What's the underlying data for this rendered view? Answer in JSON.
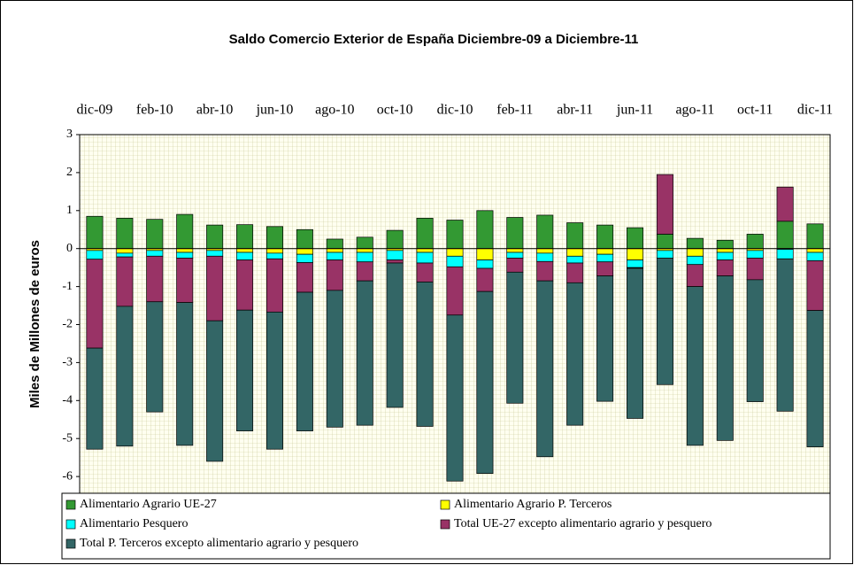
{
  "chart_data": {
    "type": "stacked_bar",
    "title": "Saldo Comercio Exterior de España Diciembre-09 a Diciembre-11",
    "y_label": "Miles de Millones de euros",
    "categories": [
      "dic-09",
      null,
      "feb-10",
      null,
      "abr-10",
      null,
      "jun-10",
      null,
      "ago-10",
      null,
      "oct-10",
      null,
      "dic-10",
      null,
      "feb-11",
      null,
      "abr-11",
      null,
      "jun-11",
      null,
      "ago-11",
      null,
      "oct-11",
      null,
      "dic-11"
    ],
    "ylim": [
      -7,
      3
    ],
    "yticks": [
      3,
      2,
      1,
      0,
      -1,
      -2,
      -3,
      -4,
      -5,
      -6,
      -7
    ],
    "grid": true,
    "series": [
      {
        "name": "Alimentario Agrario UE-27",
        "color": "#339933",
        "values": [
          0.85,
          0.8,
          0.77,
          0.9,
          0.62,
          0.63,
          0.58,
          0.5,
          0.25,
          0.3,
          0.48,
          0.8,
          0.75,
          1.0,
          0.82,
          0.88,
          0.68,
          0.62,
          0.55,
          0.38,
          0.27,
          0.22,
          0.38,
          0.72,
          0.65
        ]
      },
      {
        "name": "Alimentario Agrario P. Terceros",
        "color": "#ffff00",
        "values": [
          -0.05,
          -0.12,
          -0.05,
          -0.1,
          -0.05,
          -0.1,
          -0.12,
          -0.15,
          -0.1,
          -0.1,
          -0.05,
          -0.1,
          -0.2,
          -0.3,
          -0.1,
          -0.12,
          -0.2,
          -0.15,
          -0.3,
          -0.05,
          -0.2,
          -0.1,
          -0.05,
          -0.02,
          -0.1
        ]
      },
      {
        "name": "Alimentario Pesquero",
        "color": "#00ffff",
        "values": [
          -0.23,
          -0.1,
          -0.15,
          -0.15,
          -0.15,
          -0.2,
          -0.15,
          -0.22,
          -0.2,
          -0.25,
          -0.25,
          -0.28,
          -0.28,
          -0.22,
          -0.15,
          -0.22,
          -0.18,
          -0.2,
          -0.2,
          -0.2,
          -0.22,
          -0.2,
          -0.2,
          -0.25,
          -0.22
        ]
      },
      {
        "name": "Total UE-27 excepto alimentario agrario y pesquero",
        "color": "#993366",
        "values": [
          -2.34,
          -1.3,
          -1.2,
          -1.17,
          -1.7,
          -1.32,
          -1.4,
          -0.78,
          -0.8,
          -0.5,
          -0.08,
          -0.5,
          -1.27,
          -0.61,
          -0.37,
          -0.51,
          -0.52,
          -0.37,
          -0.02,
          1.57,
          -0.58,
          -0.42,
          -0.57,
          0.9,
          -1.31
        ]
      },
      {
        "name": "Total P. Terceros excepto alimentario agrario y pesquero",
        "color": "#336666",
        "values": [
          -2.66,
          -3.68,
          -2.9,
          -3.76,
          -3.7,
          -3.18,
          -3.61,
          -3.65,
          -3.6,
          -3.8,
          -3.8,
          -3.8,
          -4.37,
          -4.79,
          -3.45,
          -4.63,
          -3.75,
          -3.3,
          -3.95,
          -3.33,
          -4.18,
          -4.33,
          -3.21,
          -4.01,
          -3.59
        ]
      }
    ]
  }
}
